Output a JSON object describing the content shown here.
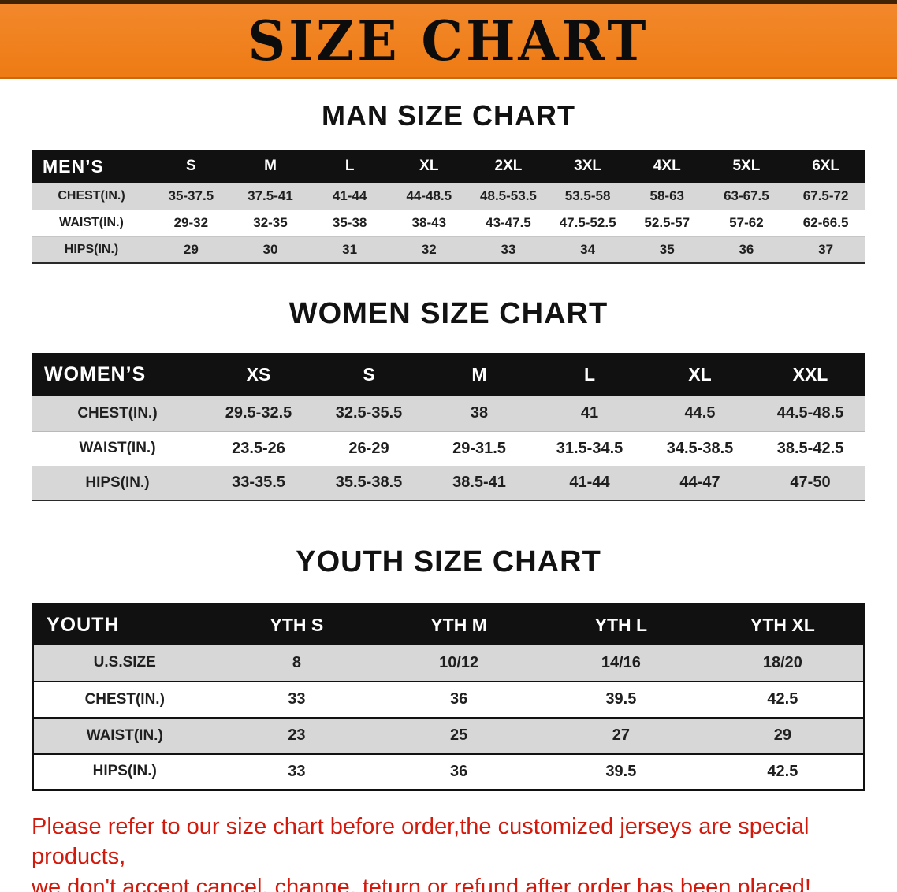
{
  "banner": {
    "title": "SIZE CHART",
    "bg_color": "#ef7e1c",
    "text_color": "#0c0c0c"
  },
  "chart_data": [
    {
      "type": "table",
      "title": "MAN SIZE CHART",
      "columns": [
        "MEN’S",
        "S",
        "M",
        "L",
        "XL",
        "2XL",
        "3XL",
        "4XL",
        "5XL",
        "6XL"
      ],
      "rows": [
        [
          "CHEST(IN.)",
          "35-37.5",
          "37.5-41",
          "41-44",
          "44-48.5",
          "48.5-53.5",
          "53.5-58",
          "58-63",
          "63-67.5",
          "67.5-72"
        ],
        [
          "WAIST(IN.)",
          "29-32",
          "32-35",
          "35-38",
          "38-43",
          "43-47.5",
          "47.5-52.5",
          "52.5-57",
          "57-62",
          "62-66.5"
        ],
        [
          "HIPS(IN.)",
          "29",
          "30",
          "31",
          "32",
          "33",
          "34",
          "35",
          "36",
          "37"
        ]
      ]
    },
    {
      "type": "table",
      "title": "WOMEN SIZE CHART",
      "columns": [
        "WOMEN’S",
        "XS",
        "S",
        "M",
        "L",
        "XL",
        "XXL"
      ],
      "rows": [
        [
          "CHEST(IN.)",
          "29.5-32.5",
          "32.5-35.5",
          "38",
          "41",
          "44.5",
          "44.5-48.5"
        ],
        [
          "WAIST(IN.)",
          "23.5-26",
          "26-29",
          "29-31.5",
          "31.5-34.5",
          "34.5-38.5",
          "38.5-42.5"
        ],
        [
          "HIPS(IN.)",
          "33-35.5",
          "35.5-38.5",
          "38.5-41",
          "41-44",
          "44-47",
          "47-50"
        ]
      ]
    },
    {
      "type": "table",
      "title": "YOUTH SIZE CHART",
      "columns": [
        "YOUTH",
        "YTH S",
        "YTH M",
        "YTH L",
        "YTH XL"
      ],
      "rows": [
        [
          "U.S.SIZE",
          "8",
          "10/12",
          "14/16",
          "18/20"
        ],
        [
          "CHEST(IN.)",
          "33",
          "36",
          "39.5",
          "42.5"
        ],
        [
          "WAIST(IN.)",
          "23",
          "25",
          "27",
          "29"
        ],
        [
          "HIPS(IN.)",
          "33",
          "36",
          "39.5",
          "42.5"
        ]
      ]
    }
  ],
  "footer_note": {
    "color": "#d2190b",
    "lines": [
      "Please refer to our size chart before order,the customized jerseys are special products,",
      "we don't accept cancel, change, teturn or refund after order has been placed!"
    ]
  }
}
